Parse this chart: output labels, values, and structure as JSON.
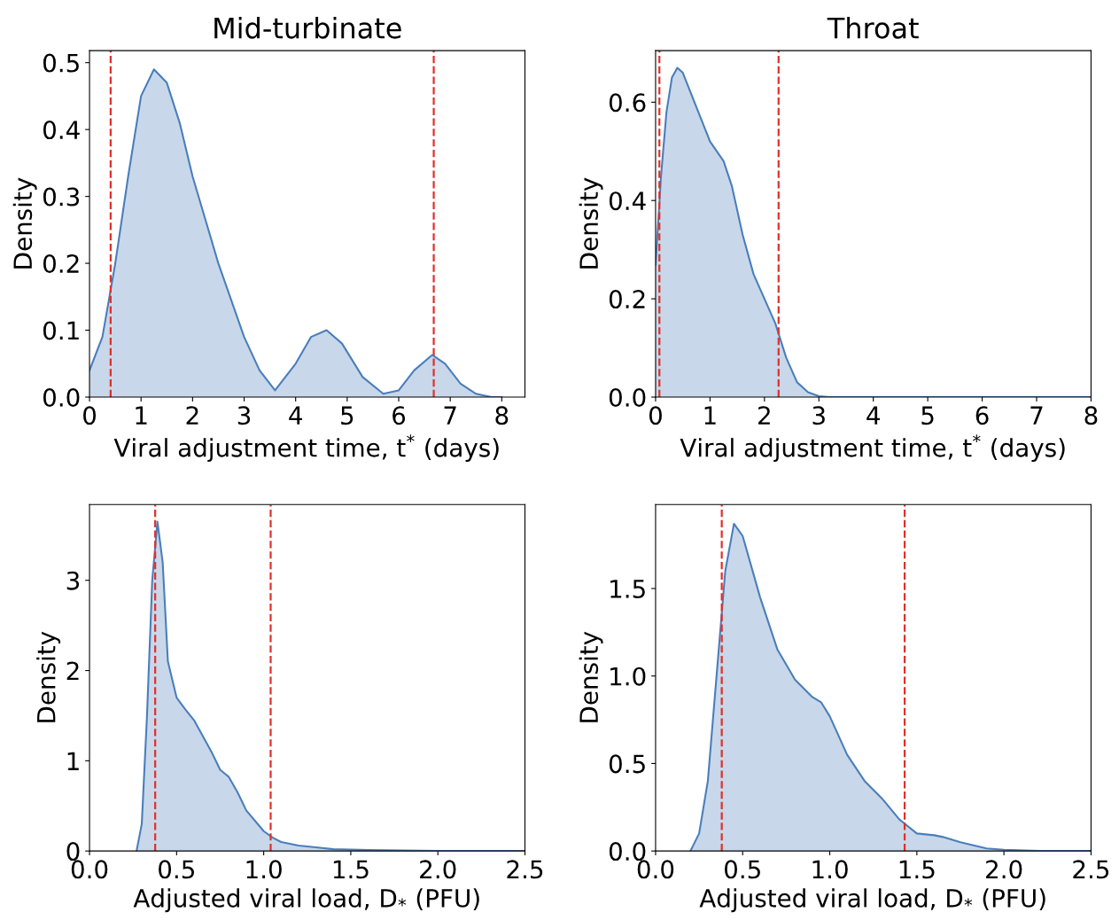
{
  "chart_data": [
    {
      "type": "area",
      "title": "Mid-turbinate",
      "xlabel": "Viral adjustment time, t$^{*}$ (days)",
      "ylabel": "Density",
      "grid": false,
      "legend": false,
      "series": [
        {
          "color": "#4a7ebb",
          "x": [
            0,
            0.25,
            0.5,
            0.75,
            1.0,
            1.25,
            1.5,
            1.75,
            2.0,
            2.5,
            3.0,
            3.3,
            3.6,
            4.0,
            4.3,
            4.6,
            4.9,
            5.3,
            5.7,
            6.0,
            6.3,
            6.65,
            6.9,
            7.2,
            7.5,
            7.8,
            8.0
          ],
          "values": [
            0.04,
            0.09,
            0.2,
            0.33,
            0.45,
            0.49,
            0.47,
            0.41,
            0.33,
            0.2,
            0.09,
            0.04,
            0.01,
            0.05,
            0.09,
            0.1,
            0.08,
            0.03,
            0.005,
            0.01,
            0.04,
            0.063,
            0.05,
            0.02,
            0.005,
            0,
            0
          ]
        }
      ],
      "xlim": [
        0,
        8.45
      ],
      "ylim": [
        0,
        0.518
      ],
      "xticks": [
        0,
        1,
        2,
        3,
        4,
        5,
        6,
        7,
        8
      ],
      "yticks": [
        {
          "value": 0,
          "label": "0.0"
        },
        {
          "value": 0.1,
          "label": "0.1"
        },
        {
          "value": 0.2,
          "label": "0.2"
        },
        {
          "value": 0.3,
          "label": "0.3"
        },
        {
          "value": 0.4,
          "label": "0.4"
        },
        {
          "value": 0.5,
          "label": "0.5"
        }
      ],
      "ref_lines": [
        {
          "axis": "x",
          "value": 0.41,
          "color": "#e0302a",
          "line_style": "dashed"
        },
        {
          "axis": "x",
          "value": 6.68,
          "color": "#e0302a",
          "line_style": "dashed"
        }
      ]
    },
    {
      "type": "area",
      "title": "Throat",
      "xlabel": "Viral adjustment time, t$^{*}$ (days)",
      "ylabel": "Density",
      "grid": false,
      "legend": false,
      "series": [
        {
          "color": "#4a7ebb",
          "x": [
            0,
            0.1,
            0.2,
            0.3,
            0.4,
            0.5,
            0.75,
            1.0,
            1.25,
            1.4,
            1.6,
            1.8,
            2.0,
            2.2,
            2.4,
            2.6,
            2.8,
            3.0,
            3.2,
            8.0
          ],
          "values": [
            0.27,
            0.45,
            0.58,
            0.65,
            0.67,
            0.66,
            0.59,
            0.52,
            0.48,
            0.43,
            0.33,
            0.25,
            0.2,
            0.15,
            0.08,
            0.03,
            0.01,
            0.002,
            0,
            0
          ]
        }
      ],
      "xlim": [
        0,
        8
      ],
      "ylim": [
        0,
        0.705
      ],
      "xticks": [
        0,
        1,
        2,
        3,
        4,
        5,
        6,
        7,
        8
      ],
      "yticks": [
        {
          "value": 0,
          "label": "0.0"
        },
        {
          "value": 0.2,
          "label": "0.2"
        },
        {
          "value": 0.4,
          "label": "0.4"
        },
        {
          "value": 0.6,
          "label": "0.6"
        }
      ],
      "ref_lines": [
        {
          "axis": "x",
          "value": 0.07,
          "color": "#e0302a",
          "line_style": "dashed"
        },
        {
          "axis": "x",
          "value": 2.26,
          "color": "#e0302a",
          "line_style": "dashed"
        }
      ]
    },
    {
      "type": "area",
      "xlabel": "Adjusted viral load, D$_{*}$ (PFU)",
      "ylabel": "Density",
      "grid": false,
      "legend": false,
      "series": [
        {
          "color": "#4a7ebb",
          "x": [
            0.27,
            0.3,
            0.33,
            0.36,
            0.39,
            0.42,
            0.45,
            0.5,
            0.55,
            0.6,
            0.7,
            0.75,
            0.8,
            0.85,
            0.9,
            1.0,
            1.05,
            1.1,
            1.2,
            1.3,
            1.4,
            1.6,
            2.0,
            2.5
          ],
          "values": [
            0,
            0.3,
            1.5,
            3.0,
            3.65,
            3.2,
            2.1,
            1.7,
            1.57,
            1.45,
            1.1,
            0.9,
            0.82,
            0.65,
            0.45,
            0.22,
            0.15,
            0.1,
            0.06,
            0.04,
            0.02,
            0.01,
            0,
            0
          ]
        }
      ],
      "xlim": [
        0,
        2.5
      ],
      "ylim": [
        0,
        3.84
      ],
      "xticks": [
        {
          "value": 0,
          "label": "0.0"
        },
        {
          "value": 0.5,
          "label": "0.5"
        },
        {
          "value": 1,
          "label": "1.0"
        },
        {
          "value": 1.5,
          "label": "1.5"
        },
        {
          "value": 2,
          "label": "2.0"
        },
        {
          "value": 2.5,
          "label": "2.5"
        }
      ],
      "yticks": [
        0,
        1,
        2,
        3
      ],
      "ref_lines": [
        {
          "axis": "x",
          "value": 0.377,
          "color": "#e0302a",
          "line_style": "dashed"
        },
        {
          "axis": "x",
          "value": 1.04,
          "color": "#e0302a",
          "line_style": "dashed"
        }
      ]
    },
    {
      "type": "area",
      "xlabel": "Adjusted viral load, D$_{*}$ (PFU)",
      "ylabel": "Density",
      "grid": false,
      "legend": false,
      "series": [
        {
          "color": "#4a7ebb",
          "x": [
            0.2,
            0.25,
            0.3,
            0.35,
            0.4,
            0.45,
            0.5,
            0.6,
            0.7,
            0.8,
            0.9,
            0.95,
            1.0,
            1.1,
            1.2,
            1.3,
            1.4,
            1.5,
            1.6,
            1.65,
            1.75,
            1.9,
            2.0,
            2.2,
            2.5
          ],
          "values": [
            0,
            0.1,
            0.4,
            1.0,
            1.6,
            1.87,
            1.8,
            1.45,
            1.15,
            0.98,
            0.88,
            0.85,
            0.77,
            0.55,
            0.4,
            0.3,
            0.18,
            0.1,
            0.09,
            0.08,
            0.05,
            0.015,
            0.007,
            0,
            0
          ]
        }
      ],
      "xlim": [
        0,
        2.5
      ],
      "ylim": [
        0,
        1.98
      ],
      "xticks": [
        {
          "value": 0,
          "label": "0.0"
        },
        {
          "value": 0.5,
          "label": "0.5"
        },
        {
          "value": 1,
          "label": "1.0"
        },
        {
          "value": 1.5,
          "label": "1.5"
        },
        {
          "value": 2,
          "label": "2.0"
        },
        {
          "value": 2.5,
          "label": "2.5"
        }
      ],
      "yticks": [
        {
          "value": 0,
          "label": "0.0"
        },
        {
          "value": 0.5,
          "label": "0.5"
        },
        {
          "value": 1,
          "label": "1.0"
        },
        {
          "value": 1.5,
          "label": "1.5"
        }
      ],
      "ref_lines": [
        {
          "axis": "x",
          "value": 0.38,
          "color": "#e0302a",
          "line_style": "dashed"
        },
        {
          "axis": "x",
          "value": 1.43,
          "color": "#e0302a",
          "line_style": "dashed"
        }
      ]
    }
  ]
}
